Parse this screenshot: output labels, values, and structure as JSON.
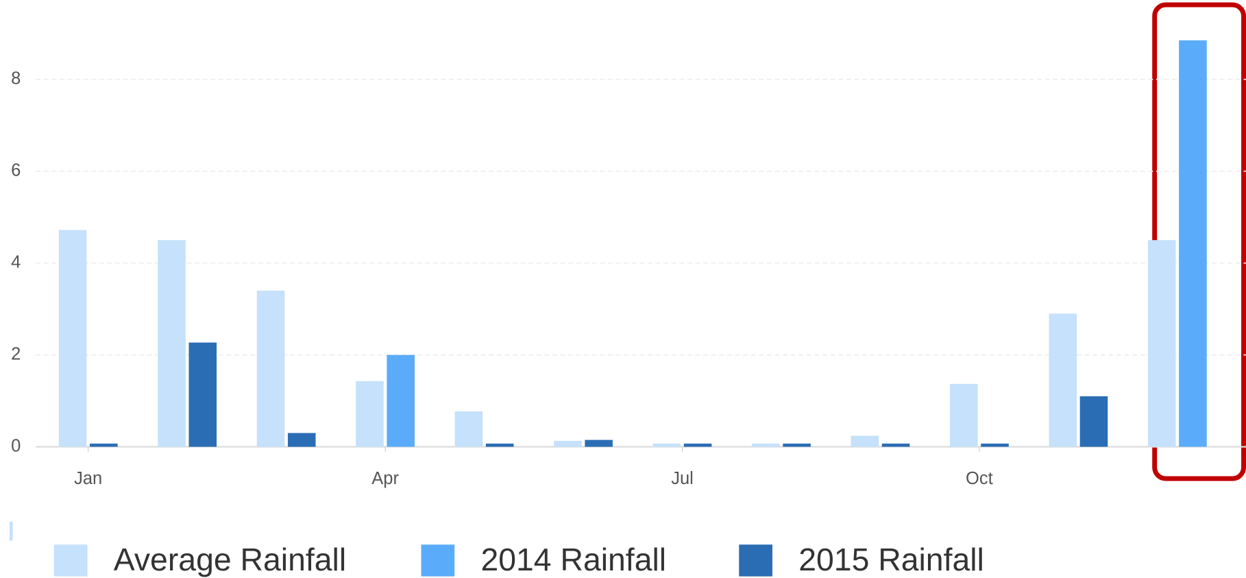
{
  "chart_data": {
    "type": "bar",
    "categories": [
      "Jan",
      null,
      null,
      "Apr",
      null,
      null,
      "Jul",
      null,
      null,
      "Oct",
      null,
      null
    ],
    "series": [
      {
        "name": "Average Rainfall",
        "color": "#c5e1fb",
        "values": [
          4.72,
          4.5,
          3.4,
          1.43,
          0.77,
          0.13,
          0.07,
          0.07,
          0.24,
          1.37,
          2.9,
          4.5
        ]
      },
      {
        "name": "2014 Rainfall",
        "color": "#5aacfb",
        "values": [
          null,
          null,
          null,
          2.0,
          null,
          null,
          null,
          null,
          null,
          null,
          null,
          8.85
        ]
      },
      {
        "name": "2015 Rainfall",
        "color": "#2a6db4",
        "values": [
          0.07,
          2.27,
          0.3,
          null,
          0.07,
          0.15,
          0.07,
          0.07,
          0.07,
          0.07,
          1.1,
          null
        ]
      }
    ],
    "ylim": [
      0,
      9
    ],
    "yticks": [
      0,
      2,
      4,
      6,
      8
    ],
    "grid": true
  }
}
